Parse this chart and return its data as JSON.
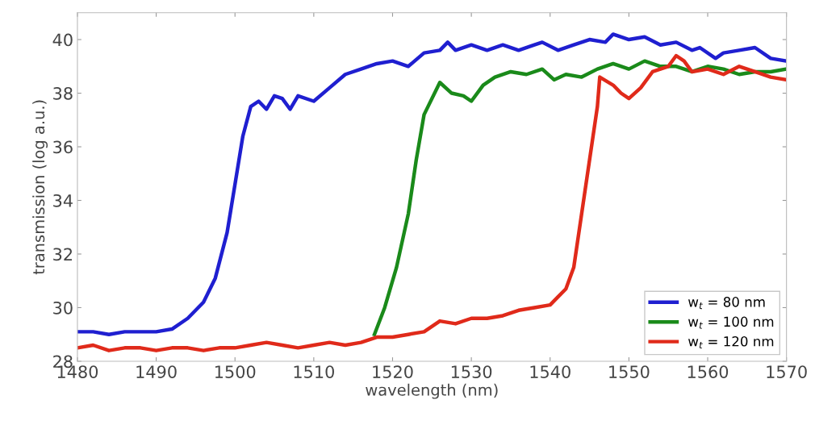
{
  "chart_data": {
    "type": "line",
    "xlabel": "wavelength (nm)",
    "ylabel": "transmission (log a.u.)",
    "xlim": [
      1480,
      1570
    ],
    "xticks": [
      1480,
      1490,
      1500,
      1510,
      1520,
      1530,
      1540,
      1550,
      1560,
      1570
    ],
    "ylim": [
      28,
      41
    ],
    "yticks": [
      28,
      30,
      32,
      34,
      36,
      38,
      40
    ],
    "grid": false,
    "legend": "bottom right",
    "line_style": "solid",
    "marker": "none",
    "series": [
      {
        "name": "w$_{t}$ = 80 nm",
        "color": "#1f1fd0",
        "x": [
          1480,
          1482,
          1484,
          1486,
          1488,
          1490,
          1492,
          1494,
          1496,
          1497.5,
          1499,
          1500,
          1501,
          1502,
          1503,
          1504,
          1505,
          1506,
          1507,
          1508,
          1510,
          1512,
          1514,
          1516,
          1518,
          1520,
          1522,
          1524,
          1526,
          1527,
          1528,
          1530,
          1532,
          1534,
          1536,
          1538,
          1539,
          1541,
          1543,
          1545,
          1547,
          1548,
          1550,
          1552,
          1554,
          1556,
          1558,
          1559,
          1561,
          1562,
          1564,
          1566,
          1568,
          1570
        ],
        "values": [
          29.1,
          29.1,
          29.0,
          29.1,
          29.1,
          29.1,
          29.2,
          29.6,
          30.2,
          31.1,
          32.8,
          34.6,
          36.4,
          37.5,
          37.7,
          37.4,
          37.9,
          37.8,
          37.4,
          37.9,
          37.7,
          38.2,
          38.7,
          38.9,
          39.1,
          39.2,
          39.0,
          39.5,
          39.6,
          39.9,
          39.6,
          39.8,
          39.6,
          39.8,
          39.6,
          39.8,
          39.9,
          39.6,
          39.8,
          40.0,
          39.9,
          40.2,
          40.0,
          40.1,
          39.8,
          39.9,
          39.6,
          39.7,
          39.3,
          39.5,
          39.6,
          39.7,
          39.3,
          39.2
        ]
      },
      {
        "name": "w$_{t}$ = 100 nm",
        "color": "#1a8a1a",
        "x": [
          1517.7,
          1519,
          1520.5,
          1522,
          1523,
          1524,
          1526,
          1527.5,
          1529,
          1530,
          1531.5,
          1533,
          1535,
          1537,
          1539,
          1540.5,
          1542,
          1544,
          1546,
          1548,
          1550,
          1552,
          1554,
          1556,
          1558,
          1560,
          1562,
          1564,
          1566,
          1568,
          1570
        ],
        "values": [
          29.0,
          30.0,
          31.5,
          33.5,
          35.5,
          37.2,
          38.4,
          38.0,
          37.9,
          37.7,
          38.3,
          38.6,
          38.8,
          38.7,
          38.9,
          38.5,
          38.7,
          38.6,
          38.9,
          39.1,
          38.9,
          39.2,
          39.0,
          39.0,
          38.8,
          39.0,
          38.9,
          38.7,
          38.8,
          38.8,
          38.9
        ]
      },
      {
        "name": "w$_{t}$ = 120 nm",
        "color": "#e02a1a",
        "x": [
          1480,
          1482,
          1484,
          1486,
          1488,
          1490,
          1492,
          1494,
          1496,
          1498,
          1500,
          1502,
          1504,
          1506,
          1508,
          1510,
          1512,
          1514,
          1516,
          1518,
          1520,
          1522,
          1524,
          1526,
          1528,
          1530,
          1532,
          1534,
          1536,
          1538,
          1540,
          1541,
          1542,
          1543,
          1544,
          1545,
          1546,
          1546.3,
          1548,
          1549,
          1550,
          1551.5,
          1553,
          1555,
          1556,
          1557,
          1558,
          1560,
          1562,
          1564,
          1566,
          1568,
          1570
        ],
        "values": [
          28.5,
          28.6,
          28.4,
          28.5,
          28.5,
          28.4,
          28.5,
          28.5,
          28.4,
          28.5,
          28.5,
          28.6,
          28.7,
          28.6,
          28.5,
          28.6,
          28.7,
          28.6,
          28.7,
          28.9,
          28.9,
          29.0,
          29.1,
          29.5,
          29.4,
          29.6,
          29.6,
          29.7,
          29.9,
          30.0,
          30.1,
          30.4,
          30.7,
          31.5,
          33.5,
          35.5,
          37.5,
          38.6,
          38.3,
          38.0,
          37.8,
          38.2,
          38.8,
          39.0,
          39.4,
          39.2,
          38.8,
          38.9,
          38.7,
          39.0,
          38.8,
          38.6,
          38.5
        ]
      }
    ]
  }
}
